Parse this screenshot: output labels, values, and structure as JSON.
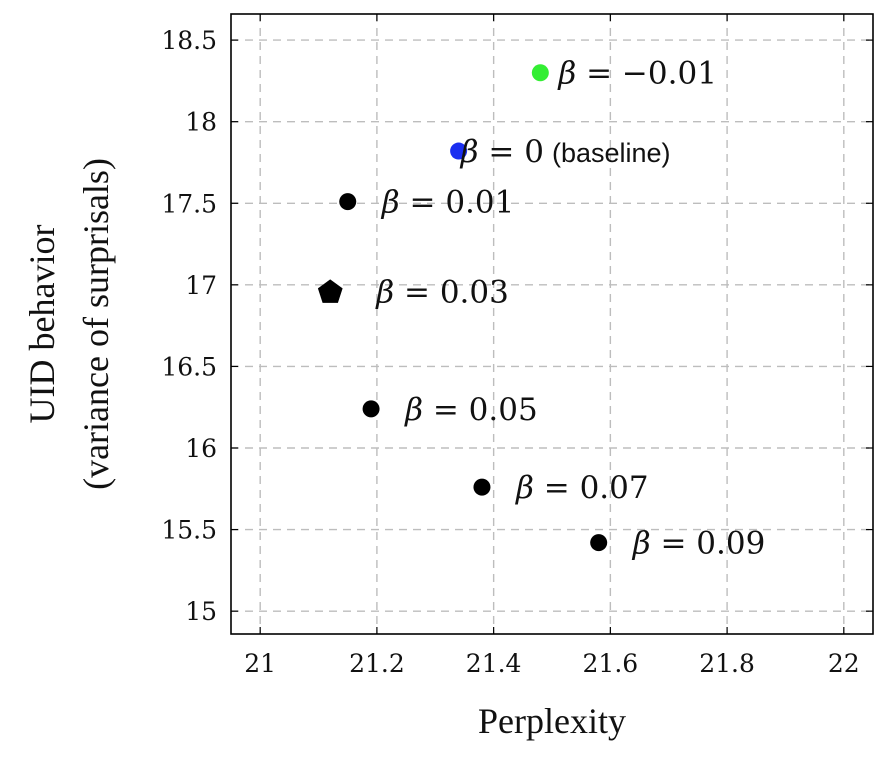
{
  "chart_data": {
    "type": "scatter",
    "xlabel": "Perplexity",
    "ylabel_lines": [
      "UID behavior",
      "(variance of surprisals)"
    ],
    "xlim": [
      20.95,
      22.05
    ],
    "ylim": [
      14.86,
      18.66
    ],
    "xticks": [
      21,
      21.2,
      21.4,
      21.6,
      21.8,
      22
    ],
    "xtick_labels": [
      "21",
      "21.2",
      "21.4",
      "21.6",
      "21.8",
      "22"
    ],
    "yticks": [
      15,
      15.5,
      16,
      16.5,
      17,
      17.5,
      18,
      18.5
    ],
    "ytick_labels": [
      "15",
      "15.5",
      "16",
      "16.5",
      "17",
      "17.5",
      "18",
      "18.5"
    ],
    "grid": true,
    "points": [
      {
        "x": 21.48,
        "y": 18.3,
        "marker": "circle",
        "color": "#33ee33",
        "label_symbol": "β",
        "label_rest": "= −0.01",
        "note": ""
      },
      {
        "x": 21.34,
        "y": 17.82,
        "marker": "circle",
        "color": "#1a2ef0",
        "label_symbol": "β",
        "label_rest": "= 0",
        "note": "(baseline)"
      },
      {
        "x": 21.15,
        "y": 17.51,
        "marker": "circle",
        "color": "#000000",
        "label_symbol": "β",
        "label_rest": "= 0.01",
        "note": ""
      },
      {
        "x": 21.12,
        "y": 16.96,
        "marker": "pentagon",
        "color": "#000000",
        "label_symbol": "β",
        "label_rest": "= 0.03",
        "note": ""
      },
      {
        "x": 21.19,
        "y": 16.24,
        "marker": "circle",
        "color": "#000000",
        "label_symbol": "β",
        "label_rest": "= 0.05",
        "note": ""
      },
      {
        "x": 21.38,
        "y": 15.76,
        "marker": "circle",
        "color": "#000000",
        "label_symbol": "β",
        "label_rest": "= 0.07",
        "note": ""
      },
      {
        "x": 21.58,
        "y": 15.42,
        "marker": "circle",
        "color": "#000000",
        "label_symbol": "β",
        "label_rest": "= 0.09",
        "note": ""
      }
    ]
  }
}
